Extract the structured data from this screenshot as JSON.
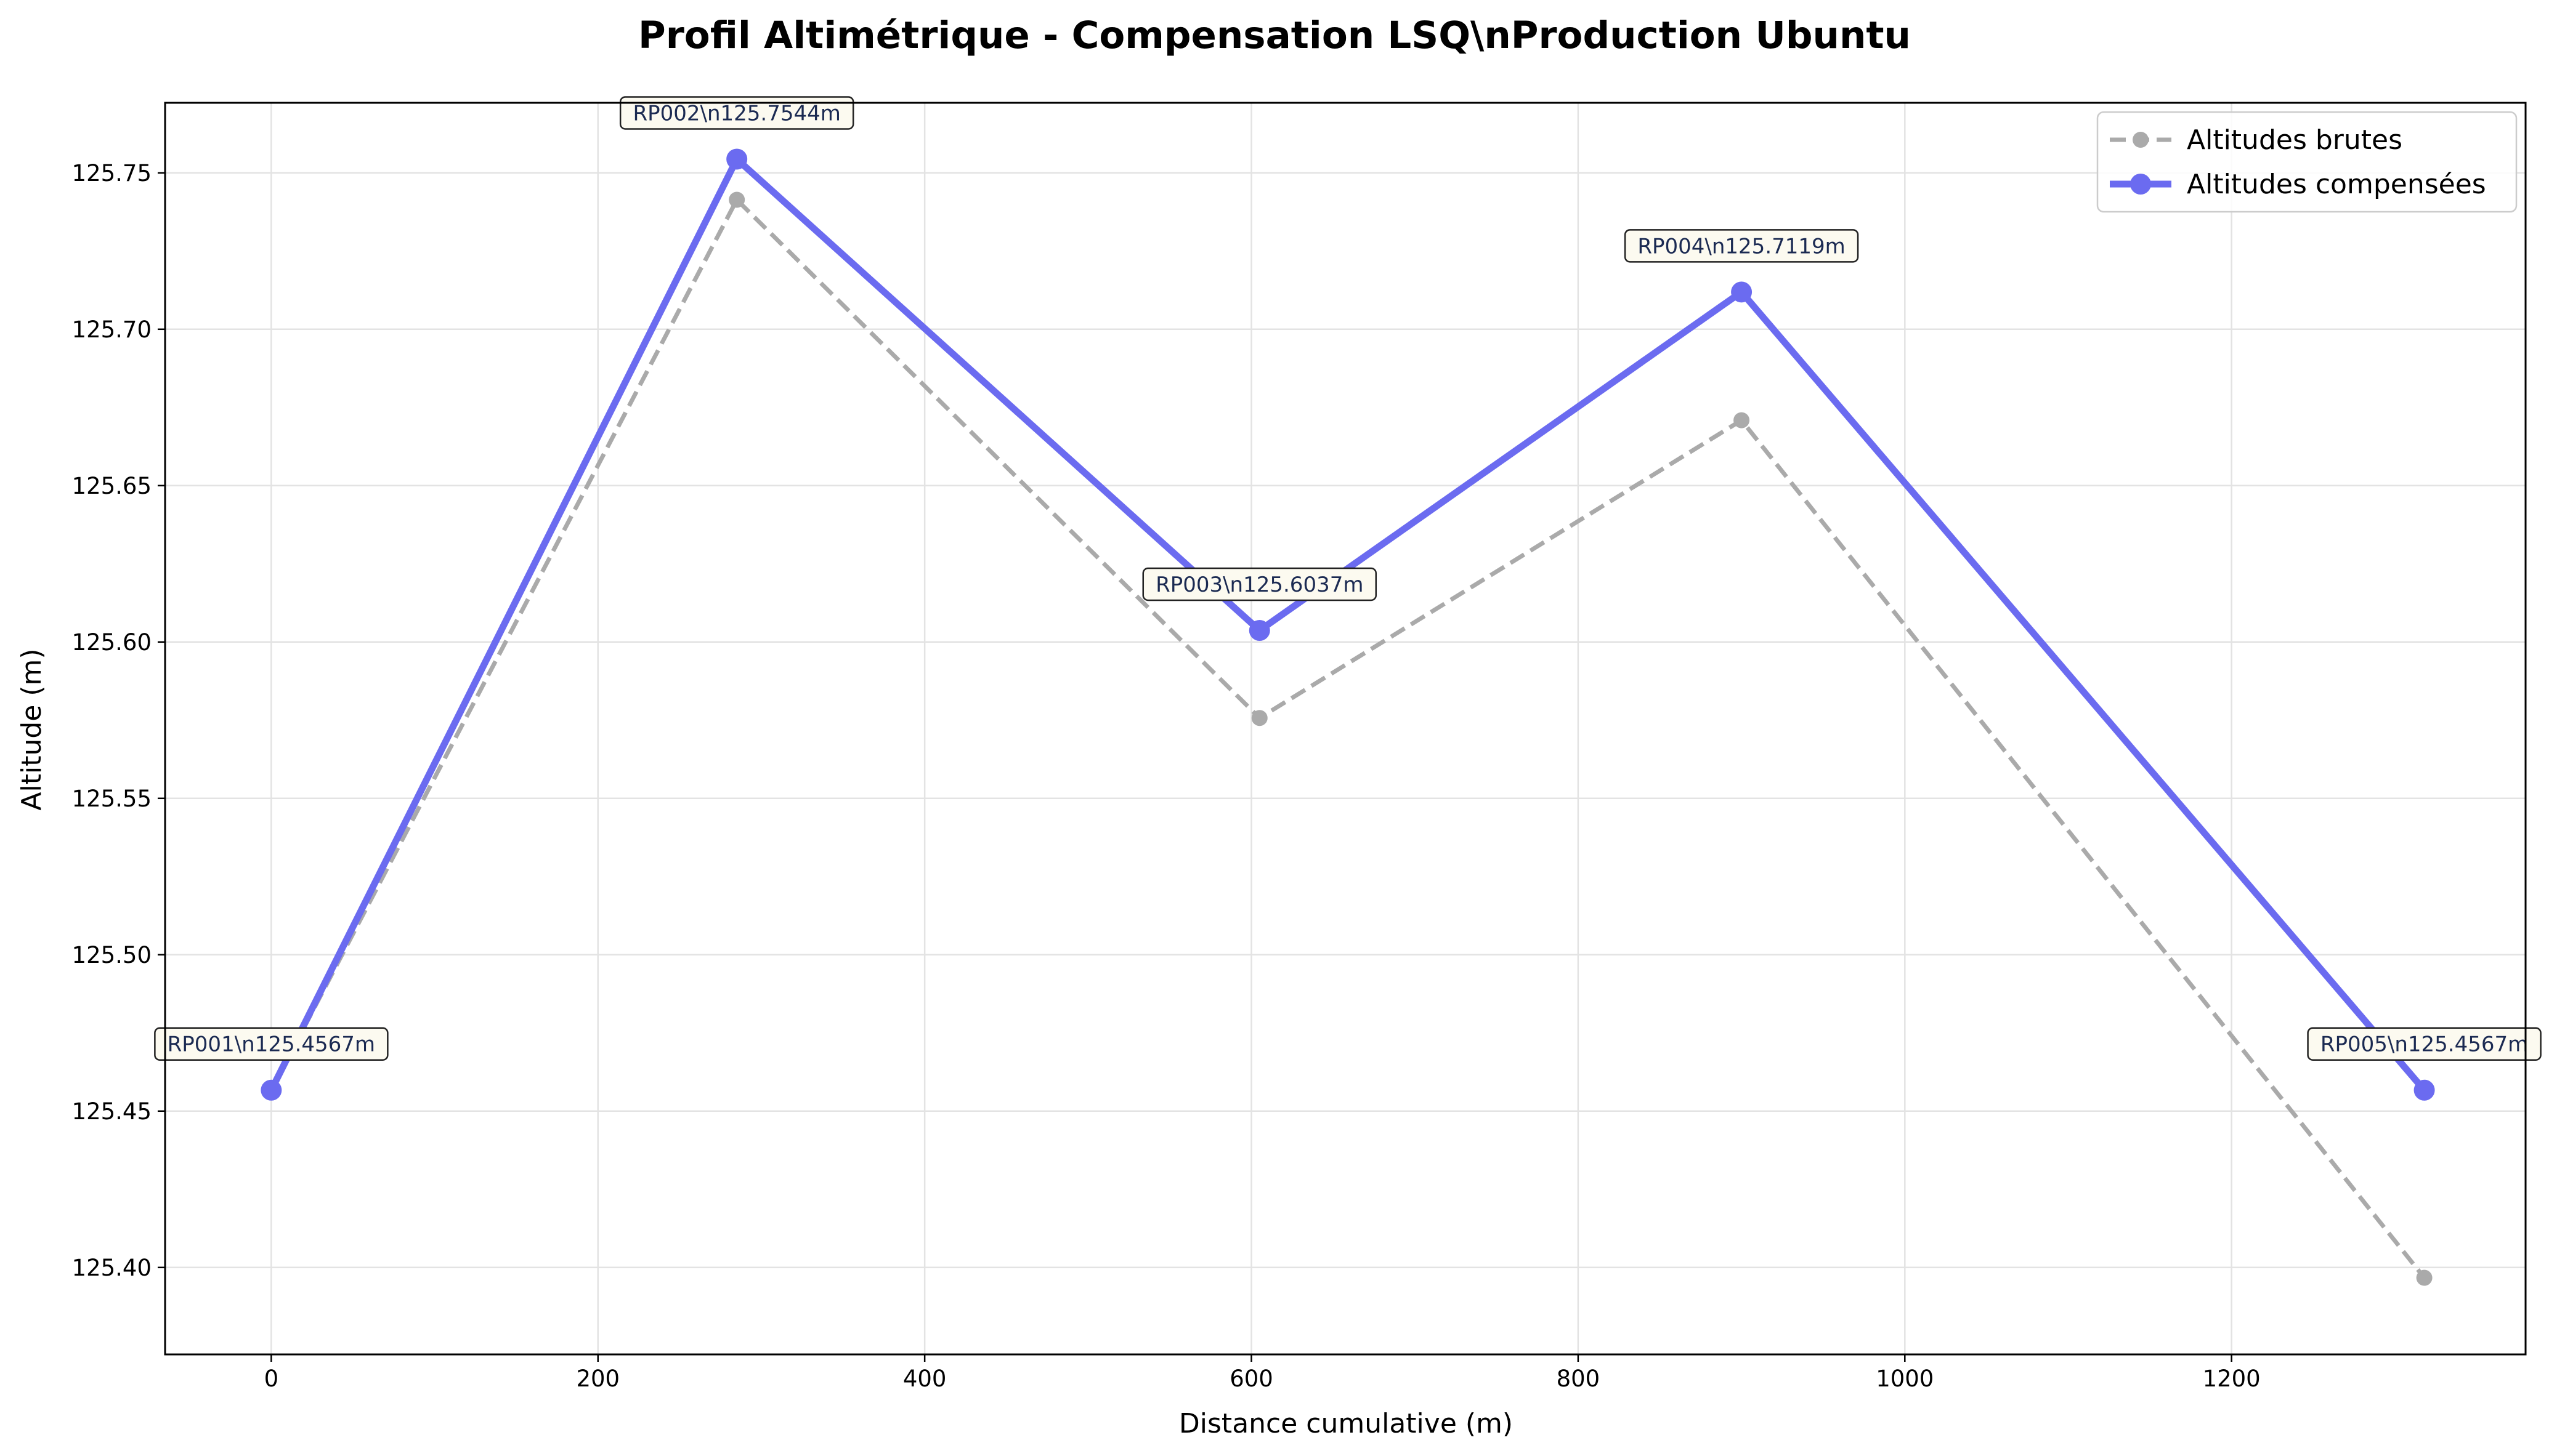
{
  "chart_data": {
    "type": "line",
    "title": "Profil Altimétrique - Compensation LSQ\\nProduction Ubuntu",
    "xlabel": "Distance cumulative (m)",
    "ylabel": "Altitude (m)",
    "xlim": [
      -65,
      1380
    ],
    "ylim": [
      125.3722,
      125.7724
    ],
    "xticks": [
      0,
      200,
      400,
      600,
      800,
      1000,
      1200
    ],
    "yticks": [
      125.4,
      125.45,
      125.5,
      125.55,
      125.6,
      125.65,
      125.7,
      125.75
    ],
    "ytick_labels": [
      "125.40",
      "125.45",
      "125.50",
      "125.55",
      "125.60",
      "125.65",
      "125.70",
      "125.75"
    ],
    "grid": true,
    "legend_position": "top-right",
    "series": [
      {
        "name": "Altitudes brutes",
        "color": "#aaaaaa",
        "style": "dashed",
        "x": [
          0,
          285,
          605,
          900,
          1318
        ],
        "y": [
          125.4567,
          125.7414,
          125.5757,
          125.6709,
          125.3967
        ]
      },
      {
        "name": "Altitudes compensées",
        "color": "#6b6bf0",
        "style": "solid",
        "x": [
          0,
          285,
          605,
          900,
          1318
        ],
        "y": [
          125.4567,
          125.7544,
          125.6037,
          125.7119,
          125.4567
        ]
      }
    ],
    "annotations": [
      {
        "label": "RP001\\n125.4567m",
        "x": 0,
        "y": 125.4567
      },
      {
        "label": "RP002\\n125.7544m",
        "x": 285,
        "y": 125.7544
      },
      {
        "label": "RP003\\n125.6037m",
        "x": 605,
        "y": 125.6037
      },
      {
        "label": "RP004\\n125.7119m",
        "x": 900,
        "y": 125.7119
      },
      {
        "label": "RP005\\n125.4567m",
        "x": 1318,
        "y": 125.4567
      }
    ]
  }
}
